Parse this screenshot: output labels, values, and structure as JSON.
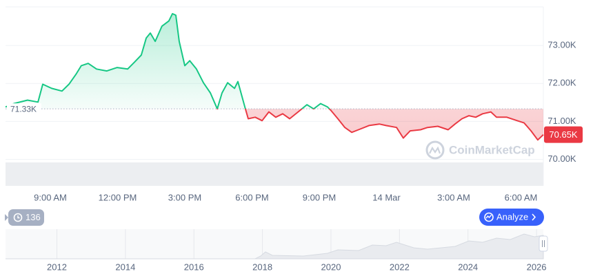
{
  "chart_data": {
    "type": "line",
    "x": [
      7.0,
      7.37,
      7.98,
      8.45,
      8.66,
      9.06,
      9.52,
      9.83,
      10.14,
      10.38,
      10.69,
      11.06,
      11.52,
      11.98,
      12.45,
      12.75,
      13.06,
      13.28,
      13.46,
      13.68,
      13.98,
      14.29,
      14.45,
      14.6,
      14.75,
      15.0,
      15.22,
      15.52,
      15.83,
      16.14,
      16.45,
      16.66,
      16.91,
      17.22,
      17.37,
      17.68,
      17.83,
      18.14,
      18.45,
      18.75,
      19.06,
      19.37,
      19.68,
      20.14,
      20.45,
      20.75,
      21.06,
      21.37,
      21.52,
      21.83,
      22.14,
      22.45,
      22.75,
      23.22,
      23.68,
      23.98,
      24.45,
      24.75,
      25.06,
      25.52,
      25.83,
      26.29,
      26.75,
      27.06,
      27.37,
      27.68,
      27.98,
      28.29,
      28.66,
      28.91,
      29.37,
      29.83,
      30.14,
      30.45,
      30.75,
      31.0
    ],
    "values": [
      71380,
      71470,
      71560,
      71510,
      71980,
      71870,
      71800,
      71980,
      72240,
      72470,
      72530,
      72380,
      72330,
      72420,
      72380,
      72560,
      72750,
      73200,
      73330,
      73110,
      73510,
      73650,
      73840,
      73800,
      73110,
      72470,
      72600,
      72380,
      72020,
      71750,
      71330,
      71750,
      72020,
      71870,
      72050,
      71380,
      71070,
      71110,
      71020,
      71250,
      71110,
      71200,
      71070,
      71290,
      71440,
      71330,
      71470,
      71380,
      71290,
      71070,
      70840,
      70710,
      70780,
      70890,
      70930,
      70890,
      70840,
      70560,
      70750,
      70780,
      70840,
      70870,
      70780,
      70930,
      71070,
      71150,
      71110,
      71200,
      71250,
      71110,
      71110,
      71020,
      70960,
      70750,
      70510,
      70650
    ],
    "baseline": 71330,
    "baseline_label": "71.33K",
    "last_value": 70650,
    "last_label": "70.65K",
    "up_color": "#16c784",
    "down_color": "#ea3943",
    "xlim": [
      7,
      31
    ],
    "ylim": [
      69300,
      74020
    ],
    "xticks": [
      {
        "value": 9,
        "label": "9:00 AM"
      },
      {
        "value": 12,
        "label": "12:00 PM"
      },
      {
        "value": 15,
        "label": "3:00 PM"
      },
      {
        "value": 18,
        "label": "6:00 PM"
      },
      {
        "value": 21,
        "label": "9:00 PM"
      },
      {
        "value": 24,
        "label": "14 Mar"
      },
      {
        "value": 27,
        "label": "3:00 AM"
      },
      {
        "value": 30,
        "label": "6:00 AM"
      }
    ],
    "yticks": [
      {
        "value": 70000,
        "label": "70.00K"
      },
      {
        "value": 71000,
        "label": "71.00K"
      },
      {
        "value": 72000,
        "label": "72.00K"
      },
      {
        "value": 73000,
        "label": "73.00K"
      }
    ],
    "grid": true
  },
  "navigator": {
    "xlim": [
      2010.5,
      2026.2
    ],
    "xticks": [
      2012,
      2014,
      2016,
      2018,
      2020,
      2022,
      2024,
      2026
    ]
  },
  "ui": {
    "watermark": "CoinMarketCap",
    "history_count": "136",
    "analyze_button": "Analyze"
  }
}
